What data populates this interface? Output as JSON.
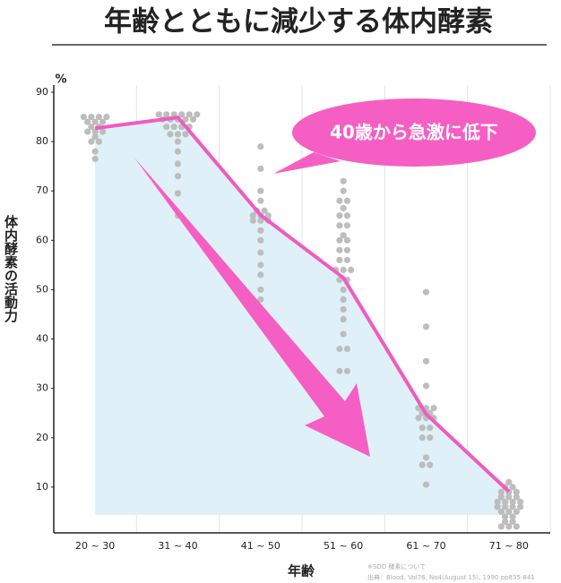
{
  "chart_data": {
    "type": "line",
    "title": "年齢とともに減少する体内酵素",
    "y_label": "体内酵素の活動力",
    "y_unit": "%",
    "x_label": "年齢",
    "annotation": "40歳から急激に低下",
    "notes": [
      "※SOD 酵素について",
      "出典：Blood, Vol76, No4(August 15), 1990 pp835-841"
    ],
    "categories": [
      "20 ~ 30",
      "31 ~ 40",
      "41 ~ 50",
      "51 ~ 60",
      "61 ~ 70",
      "71 ~ 80"
    ],
    "values": [
      82.7,
      84.9,
      65.1,
      52.4,
      24.8,
      9.1
    ],
    "color": "#ee5cc0",
    "area_color": "#dff0f8",
    "sample_color": "#bdbdbd",
    "samples": [
      [
        85,
        85,
        85,
        85,
        84,
        84,
        84,
        83,
        83,
        82,
        82,
        82,
        81,
        80,
        80,
        78,
        76.5
      ],
      [
        85.5,
        85.5,
        85.5,
        85.5,
        85.5,
        85.5,
        84.5,
        84.5,
        84.5,
        84.5,
        84.5,
        83,
        83,
        83,
        83,
        81.5,
        81.5,
        81.5,
        80,
        78,
        75.5,
        73,
        69.5,
        65
      ],
      [
        79,
        74.5,
        70,
        68,
        66,
        66,
        65,
        65,
        65,
        64,
        64,
        64,
        62,
        60,
        57.5,
        55,
        53,
        50,
        48,
        45.5,
        44
      ],
      [
        72,
        70,
        68,
        68,
        66.5,
        65,
        65,
        63,
        63,
        61,
        60,
        60,
        58,
        58,
        56,
        56,
        54,
        54,
        54,
        52,
        52,
        50,
        48,
        46,
        44,
        41,
        38,
        38,
        33.5,
        33.5
      ],
      [
        49.5,
        42.5,
        35.5,
        30.5,
        26,
        26,
        26,
        25,
        25,
        24,
        24,
        24,
        22,
        22,
        20,
        20,
        16,
        14.5,
        14.5,
        10.5
      ],
      [
        11,
        10,
        10,
        9,
        9,
        9,
        8,
        8,
        8,
        7,
        7,
        7,
        7,
        6,
        6,
        6,
        6,
        5,
        5,
        5,
        4,
        4,
        3,
        3,
        2,
        2,
        2
      ]
    ],
    "ylim": [
      0,
      90
    ],
    "yticks": [
      10,
      20,
      30,
      40,
      50,
      60,
      70,
      80,
      90
    ]
  }
}
